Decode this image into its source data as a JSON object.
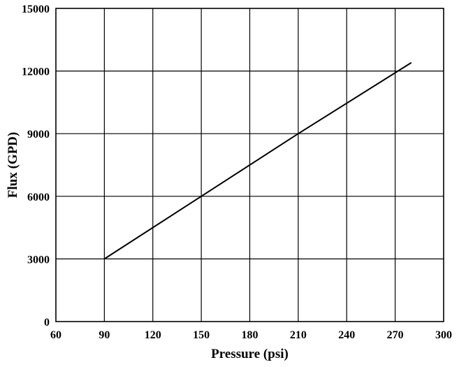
{
  "chart_data": {
    "type": "line",
    "title": "",
    "xlabel": "Pressure (psi)",
    "ylabel": "Flux (GPD)",
    "xlim": [
      60,
      300
    ],
    "ylim": [
      0,
      15000
    ],
    "x_ticks": [
      60,
      90,
      120,
      150,
      180,
      210,
      240,
      270,
      300
    ],
    "y_ticks": [
      0,
      3000,
      6000,
      9000,
      12000,
      15000
    ],
    "grid": true,
    "legend": "none",
    "series": [
      {
        "x": [
          90,
          150,
          210,
          280
        ],
        "y": [
          3000,
          6000,
          9000,
          12400
        ],
        "color": "#000000"
      }
    ]
  }
}
